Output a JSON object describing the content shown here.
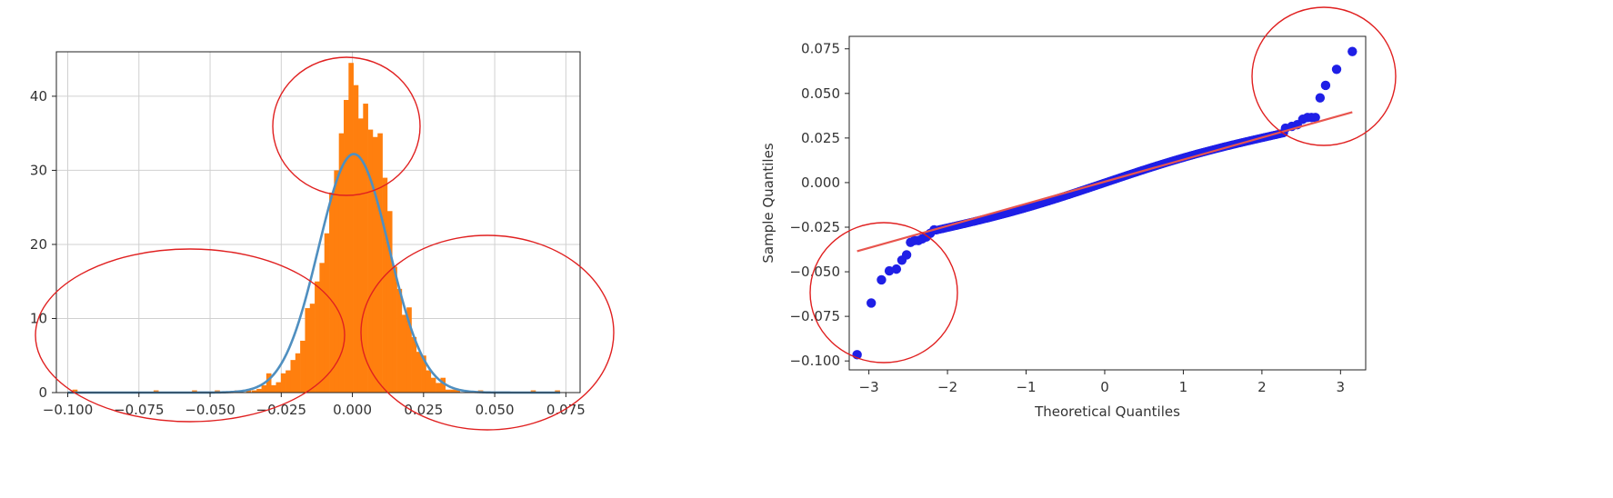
{
  "colors": {
    "hist_bar": "#ff7f0e",
    "normal_curve": "#4f8fc0",
    "qq_points": "#1f1fe6",
    "qq_line": "#e8554e",
    "annotation_circle": "#e02020",
    "grid": "#d0d0d0"
  },
  "chart_data": [
    {
      "type": "bar",
      "subtype": "histogram-with-density",
      "title": "",
      "xlabel": "",
      "ylabel": "",
      "grid": true,
      "xlim": [
        -0.104,
        0.08
      ],
      "ylim": [
        0,
        46
      ],
      "x_ticks": [
        -0.1,
        -0.075,
        -0.05,
        -0.025,
        0.0,
        0.025,
        0.05,
        0.075
      ],
      "x_tick_labels": [
        "−0.100",
        "−0.075",
        "−0.050",
        "−0.025",
        "0.000",
        "0.025",
        "0.050",
        "0.075"
      ],
      "y_ticks": [
        0,
        10,
        20,
        30,
        40
      ],
      "y_tick_labels": [
        "0",
        "10",
        "20",
        "30",
        "40"
      ],
      "bin_width": 0.0017,
      "bins": [
        {
          "x": -0.0975,
          "y": 0.4
        },
        {
          "x": -0.069,
          "y": 0.3
        },
        {
          "x": -0.0555,
          "y": 0.3
        },
        {
          "x": -0.0475,
          "y": 0.3
        },
        {
          "x": -0.0405,
          "y": 0.3
        },
        {
          "x": -0.0365,
          "y": 0.3
        },
        {
          "x": -0.0345,
          "y": 0.3
        },
        {
          "x": -0.0328,
          "y": 0.5
        },
        {
          "x": -0.0311,
          "y": 1.0
        },
        {
          "x": -0.0294,
          "y": 2.6
        },
        {
          "x": -0.0277,
          "y": 1.0
        },
        {
          "x": -0.026,
          "y": 1.4
        },
        {
          "x": -0.0243,
          "y": 2.6
        },
        {
          "x": -0.0226,
          "y": 3.0
        },
        {
          "x": -0.0209,
          "y": 4.4
        },
        {
          "x": -0.0192,
          "y": 5.3
        },
        {
          "x": -0.0175,
          "y": 7.0
        },
        {
          "x": -0.0158,
          "y": 11.4
        },
        {
          "x": -0.0141,
          "y": 12.0
        },
        {
          "x": -0.0124,
          "y": 15.0
        },
        {
          "x": -0.0107,
          "y": 17.5
        },
        {
          "x": -0.009,
          "y": 21.5
        },
        {
          "x": -0.0073,
          "y": 27.0
        },
        {
          "x": -0.0056,
          "y": 30.0
        },
        {
          "x": -0.0039,
          "y": 35.0
        },
        {
          "x": -0.0022,
          "y": 39.5
        },
        {
          "x": -0.0005,
          "y": 44.5
        },
        {
          "x": 0.0012,
          "y": 41.5
        },
        {
          "x": 0.0029,
          "y": 37.0
        },
        {
          "x": 0.0046,
          "y": 39.0
        },
        {
          "x": 0.0063,
          "y": 35.5
        },
        {
          "x": 0.008,
          "y": 34.5
        },
        {
          "x": 0.0097,
          "y": 35.0
        },
        {
          "x": 0.0114,
          "y": 29.0
        },
        {
          "x": 0.0131,
          "y": 24.5
        },
        {
          "x": 0.0148,
          "y": 17.0
        },
        {
          "x": 0.0165,
          "y": 14.0
        },
        {
          "x": 0.0182,
          "y": 10.5
        },
        {
          "x": 0.0199,
          "y": 11.5
        },
        {
          "x": 0.0216,
          "y": 7.5
        },
        {
          "x": 0.0233,
          "y": 5.5
        },
        {
          "x": 0.025,
          "y": 5.0
        },
        {
          "x": 0.0267,
          "y": 3.0
        },
        {
          "x": 0.0284,
          "y": 2.0
        },
        {
          "x": 0.0301,
          "y": 1.3
        },
        {
          "x": 0.0318,
          "y": 2.0
        },
        {
          "x": 0.0335,
          "y": 0.4
        },
        {
          "x": 0.0352,
          "y": 0.4
        },
        {
          "x": 0.0369,
          "y": 0.4
        },
        {
          "x": 0.045,
          "y": 0.3
        },
        {
          "x": 0.0635,
          "y": 0.3
        },
        {
          "x": 0.072,
          "y": 0.3
        }
      ],
      "density_curve": {
        "mean": 0.0005,
        "std": 0.0124,
        "peak": 32.2
      }
    },
    {
      "type": "scatter",
      "subtype": "qq-plot",
      "title": "",
      "xlabel": "Theoretical Quantiles",
      "ylabel": "Sample Quantiles",
      "grid": false,
      "xlim": [
        -3.25,
        3.32
      ],
      "ylim": [
        -0.105,
        0.082
      ],
      "x_ticks": [
        -3,
        -2,
        -1,
        0,
        1,
        2,
        3
      ],
      "x_tick_labels": [
        "−3",
        "−2",
        "−1",
        "0",
        "1",
        "2",
        "3"
      ],
      "y_ticks": [
        -0.1,
        -0.075,
        -0.05,
        -0.025,
        0.0,
        0.025,
        0.05,
        0.075
      ],
      "y_tick_labels": [
        "−0.100",
        "−0.075",
        "−0.050",
        "−0.025",
        "0.000",
        "0.025",
        "0.050",
        "0.075"
      ],
      "reference_line": {
        "x": [
          -3.15,
          3.15
        ],
        "y": [
          -0.0385,
          0.0395
        ]
      },
      "points": [
        {
          "x": -3.15,
          "y": -0.0965
        },
        {
          "x": -2.97,
          "y": -0.0675
        },
        {
          "x": -2.84,
          "y": -0.0545
        },
        {
          "x": -2.74,
          "y": -0.0495
        },
        {
          "x": -2.65,
          "y": -0.0485
        },
        {
          "x": -2.58,
          "y": -0.0435
        },
        {
          "x": -2.52,
          "y": -0.0405
        },
        {
          "x": -2.47,
          "y": -0.0335
        },
        {
          "x": -2.42,
          "y": -0.0325
        },
        {
          "x": -2.37,
          "y": -0.0325
        },
        {
          "x": -2.32,
          "y": -0.0315
        },
        {
          "x": -2.27,
          "y": -0.0305
        },
        {
          "x": -2.22,
          "y": -0.0285
        },
        {
          "x": -2.17,
          "y": -0.0265
        },
        {
          "x": 2.3,
          "y": 0.0305
        },
        {
          "x": 2.38,
          "y": 0.0315
        },
        {
          "x": 2.45,
          "y": 0.0325
        },
        {
          "x": 2.52,
          "y": 0.0355
        },
        {
          "x": 2.58,
          "y": 0.0365
        },
        {
          "x": 2.63,
          "y": 0.0365
        },
        {
          "x": 2.68,
          "y": 0.0365
        },
        {
          "x": 2.74,
          "y": 0.0475
        },
        {
          "x": 2.81,
          "y": 0.0545
        },
        {
          "x": 2.95,
          "y": 0.0635
        },
        {
          "x": 3.15,
          "y": 0.0735
        }
      ],
      "body_band": {
        "x_from": -2.15,
        "x_to": 2.28,
        "points": 400
      }
    }
  ],
  "annotations": {
    "circled_regions": [
      "histogram peak",
      "histogram left tail",
      "histogram right tail",
      "qq upper tail",
      "qq lower tail"
    ]
  }
}
